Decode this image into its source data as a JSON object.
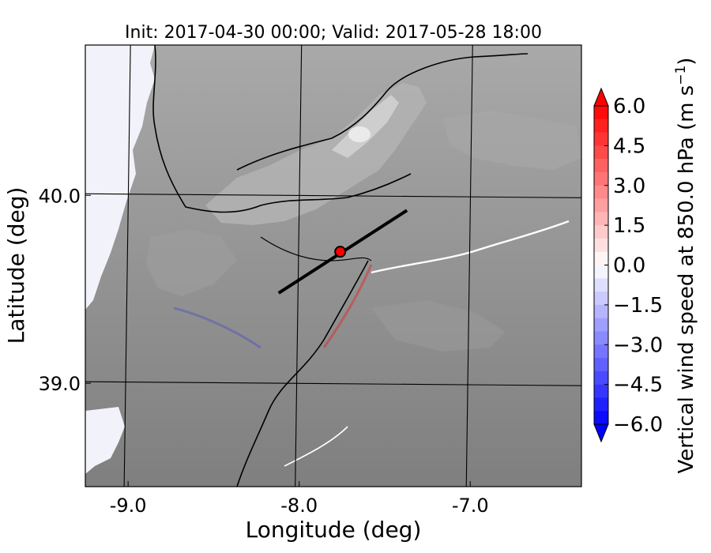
{
  "chart_data": {
    "type": "heatmap",
    "title": "Init: 2017-04-30 00:00; Valid: 2017-05-28 18:00",
    "xlabel": "Longitude (deg)",
    "ylabel": "Latitude (deg)",
    "xlim": [
      -9.25,
      -6.35
    ],
    "ylim": [
      38.45,
      40.8
    ],
    "xticks": [
      {
        "value": -9.0,
        "label": "-9.0"
      },
      {
        "value": -8.0,
        "label": "-8.0"
      },
      {
        "value": -7.0,
        "label": "-7.0"
      }
    ],
    "yticks": [
      {
        "value": 40.0,
        "label": "40.0"
      },
      {
        "value": 39.0,
        "label": "39.0"
      }
    ],
    "grid": true,
    "cross_section": {
      "start": [
        -8.12,
        39.48
      ],
      "end": [
        -7.37,
        39.92
      ]
    },
    "point": {
      "lon": -7.76,
      "lat": 39.7
    },
    "colorbar": {
      "label": "Vertical wind speed at 850.0 hPa (m s",
      "label_exponent": "−1",
      "label_close": ")",
      "vmin": -6.0,
      "vmax": 6.0,
      "extend": "both",
      "ticks": [
        {
          "value": 6.0,
          "label": "6.0"
        },
        {
          "value": 4.5,
          "label": "4.5"
        },
        {
          "value": 3.0,
          "label": "3.0"
        },
        {
          "value": 1.5,
          "label": "1.5"
        },
        {
          "value": 0.0,
          "label": "0.0"
        },
        {
          "value": -1.5,
          "label": "−1.5"
        },
        {
          "value": -3.0,
          "label": "−3.0"
        },
        {
          "value": -4.5,
          "label": "−4.5"
        },
        {
          "value": -6.0,
          "label": "−6.0"
        }
      ]
    },
    "colors": {
      "land": "#8a8a8a",
      "terrain_light": "#c9c9c9",
      "sea": "#f2f2fb",
      "positive": "#ff0000",
      "negative": "#0000ff",
      "marker": "#ff0000"
    }
  }
}
